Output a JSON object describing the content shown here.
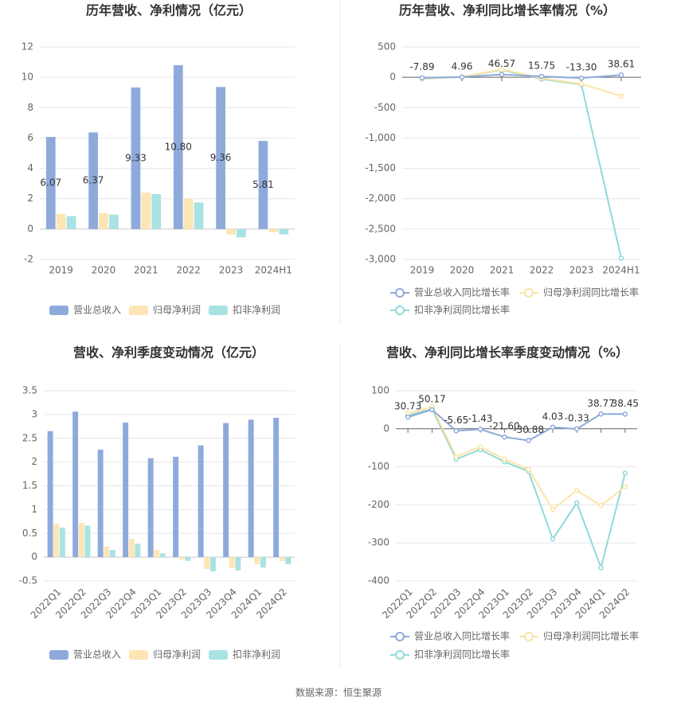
{
  "chart_data": [
    {
      "type": "bar",
      "title": "历年营收、净利情况（亿元）",
      "categories": [
        "2019",
        "2020",
        "2021",
        "2022",
        "2023",
        "2024H1"
      ],
      "series": [
        {
          "name": "营业总收入",
          "color": "#8eaadb",
          "values": [
            6.07,
            6.37,
            9.33,
            10.8,
            9.36,
            5.81
          ],
          "value_labels": [
            "6.07",
            "6.37",
            "9.33",
            "10.80",
            "9.36",
            "5.81"
          ]
        },
        {
          "name": "归母净利润",
          "color": "#fde5b5",
          "values": [
            1.0,
            1.05,
            2.4,
            2.0,
            -0.35,
            -0.2
          ]
        },
        {
          "name": "扣非净利润",
          "color": "#a9e2e3",
          "values": [
            0.85,
            0.95,
            2.3,
            1.75,
            -0.55,
            -0.35
          ]
        }
      ],
      "ylim": [
        -2,
        12
      ],
      "yticks": [
        -2,
        0,
        2,
        4,
        6,
        8,
        10,
        12
      ],
      "grid": true
    },
    {
      "type": "line",
      "title": "历年营收、净利同比增长率情况（%）",
      "categories": [
        "2019",
        "2020",
        "2021",
        "2022",
        "2023",
        "2024H1"
      ],
      "series": [
        {
          "name": "营业总收入同比增长率",
          "color": "#8eaadb",
          "values": [
            -7.89,
            4.96,
            46.57,
            15.75,
            -13.3,
            38.61
          ],
          "value_labels": [
            "-7.89",
            "4.96",
            "46.57",
            "15.75",
            "-13.30",
            "38.61"
          ]
        },
        {
          "name": "归母净利润同比增长率",
          "color": "#fde3a6",
          "values": [
            -20,
            5,
            130,
            -15,
            -110,
            -310
          ]
        },
        {
          "name": "扣非净利润同比增长率",
          "color": "#92d9d9",
          "values": [
            -25,
            5,
            120,
            -30,
            -120,
            -2980
          ]
        }
      ],
      "ylim": [
        -3000,
        500
      ],
      "yticks": [
        {
          "value": -3000,
          "label": "-3,000"
        },
        {
          "value": -2500,
          "label": "-2,500"
        },
        {
          "value": -2000,
          "label": "-2,000"
        },
        {
          "value": -1500,
          "label": "-1,500"
        },
        {
          "value": -1000,
          "label": "-1,000"
        },
        -500,
        0,
        500
      ],
      "grid": true
    },
    {
      "type": "bar",
      "title": "营收、净利季度变动情况（亿元）",
      "categories": [
        "2022Q1",
        "2022Q2",
        "2022Q3",
        "2022Q4",
        "2023Q1",
        "2023Q2",
        "2023Q3",
        "2023Q4",
        "2024Q1",
        "2024Q2"
      ],
      "series": [
        {
          "name": "营业总收入",
          "color": "#8eaadb",
          "values": [
            2.65,
            3.06,
            2.26,
            2.83,
            2.08,
            2.11,
            2.35,
            2.82,
            2.89,
            2.93
          ]
        },
        {
          "name": "归母净利润",
          "color": "#fde5b5",
          "values": [
            0.7,
            0.72,
            0.22,
            0.38,
            0.15,
            -0.05,
            -0.25,
            -0.22,
            -0.15,
            -0.08
          ]
        },
        {
          "name": "扣非净利润",
          "color": "#a9e2e3",
          "values": [
            0.62,
            0.66,
            0.15,
            0.28,
            0.08,
            -0.08,
            -0.3,
            -0.28,
            -0.22,
            -0.15
          ]
        }
      ],
      "ylim": [
        -0.5,
        3.5
      ],
      "yticks": [
        -0.5,
        0,
        0.5,
        1,
        1.5,
        2,
        2.5,
        3,
        3.5
      ],
      "grid": true
    },
    {
      "type": "line",
      "title": "营收、净利同比增长率季度变动情况（%）",
      "categories": [
        "2022Q1",
        "2022Q2",
        "2022Q3",
        "2022Q4",
        "2023Q1",
        "2023Q2",
        "2023Q3",
        "2023Q4",
        "2024Q1",
        "2024Q2"
      ],
      "series": [
        {
          "name": "营业总收入同比增长率",
          "color": "#8eaadb",
          "values": [
            30.73,
            50.17,
            -5.65,
            -1.43,
            -21.6,
            -30.88,
            4.03,
            -0.33,
            38.77,
            38.45
          ],
          "value_labels": [
            "30.73",
            "50.17",
            "-5.65",
            "-1.43",
            "-21.60",
            "-30.88",
            "4.03",
            "-0.33",
            "38.77",
            "38.45"
          ]
        },
        {
          "name": "归母净利润同比增长率",
          "color": "#fde3a6",
          "values": [
            40,
            58,
            -73,
            -48,
            -80,
            -107,
            -212,
            -162,
            -202,
            -152
          ]
        },
        {
          "name": "扣非净利润同比增长率",
          "color": "#92d9d9",
          "values": [
            35,
            52,
            -80,
            -55,
            -87,
            -112,
            -290,
            -195,
            -365,
            -117
          ]
        }
      ],
      "ylim": [
        -400,
        100
      ],
      "yticks": [
        -400,
        -300,
        -200,
        -100,
        0,
        100
      ],
      "grid": true
    }
  ],
  "source": "数据来源：恒生聚源"
}
